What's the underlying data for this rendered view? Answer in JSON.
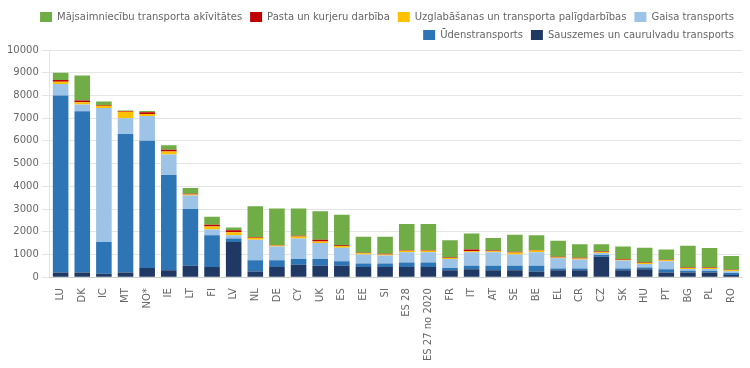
{
  "chart_data": {
    "type": "bar",
    "stacked": true,
    "grid": true,
    "legend": "upper right",
    "categories": [
      "LU",
      "DK",
      "IC",
      "MT",
      "NO*",
      "IE",
      "LT",
      "FI",
      "LV",
      "NL",
      "DE",
      "CY",
      "UK",
      "ES",
      "EE",
      "SI",
      "ES 28",
      "ES 27 no 2020",
      "FR",
      "IT",
      "AT",
      "SE",
      "BE",
      "EL",
      "CR",
      "CZ",
      "SK",
      "HU",
      "PT",
      "BG",
      "PL",
      "RO"
    ],
    "series": [
      {
        "name": "Sauszemes un caurulvadu transports",
        "color": "#1f3864",
        "values": [
          200,
          200,
          150,
          200,
          400,
          300,
          500,
          450,
          1550,
          250,
          450,
          550,
          500,
          500,
          450,
          450,
          450,
          450,
          300,
          350,
          300,
          300,
          250,
          300,
          300,
          900,
          300,
          350,
          200,
          200,
          200,
          100
        ]
      },
      {
        "name": "Ūdenstransports",
        "color": "#2e75b6",
        "values": [
          7800,
          7100,
          1400,
          6100,
          5600,
          4200,
          2500,
          1400,
          150,
          500,
          300,
          250,
          300,
          200,
          150,
          150,
          200,
          200,
          100,
          150,
          200,
          200,
          250,
          80,
          80,
          80,
          80,
          80,
          150,
          80,
          80,
          80
        ]
      },
      {
        "name": "Gaisa transports",
        "color": "#9dc3e6",
        "values": [
          500,
          300,
          5900,
          700,
          1100,
          900,
          600,
          250,
          150,
          900,
          600,
          900,
          700,
          600,
          400,
          350,
          450,
          450,
          400,
          600,
          600,
          500,
          600,
          450,
          400,
          80,
          350,
          150,
          350,
          80,
          80,
          80
        ]
      },
      {
        "name": "Uzglabāšanas un transporta palīgdarbības",
        "color": "#ffc000",
        "values": [
          100,
          100,
          100,
          280,
          80,
          130,
          40,
          130,
          130,
          90,
          40,
          90,
          70,
          70,
          50,
          50,
          60,
          60,
          40,
          40,
          40,
          90,
          70,
          40,
          40,
          40,
          40,
          40,
          40,
          40,
          40,
          40
        ]
      },
      {
        "name": "Pasta un kurjeru darbība",
        "color": "#c00000",
        "values": [
          80,
          80,
          30,
          30,
          80,
          80,
          30,
          80,
          80,
          30,
          30,
          30,
          80,
          30,
          30,
          30,
          30,
          30,
          30,
          80,
          30,
          30,
          30,
          30,
          30,
          30,
          30,
          30,
          30,
          30,
          30,
          30
        ]
      },
      {
        "name": "Mājsaimniecību transporta akīvitātes",
        "color": "#70ad47",
        "values": [
          320,
          1100,
          150,
          30,
          50,
          200,
          250,
          350,
          130,
          1350,
          1600,
          1200,
          1250,
          1350,
          700,
          750,
          1150,
          1150,
          750,
          700,
          550,
          750,
          650,
          700,
          600,
          320,
          550,
          650,
          450,
          950,
          850,
          600
        ]
      }
    ],
    "ylim": [
      0,
      10000
    ],
    "yticks": [
      0,
      1000,
      2000,
      3000,
      4000,
      5000,
      6000,
      7000,
      8000,
      9000,
      10000
    ]
  }
}
